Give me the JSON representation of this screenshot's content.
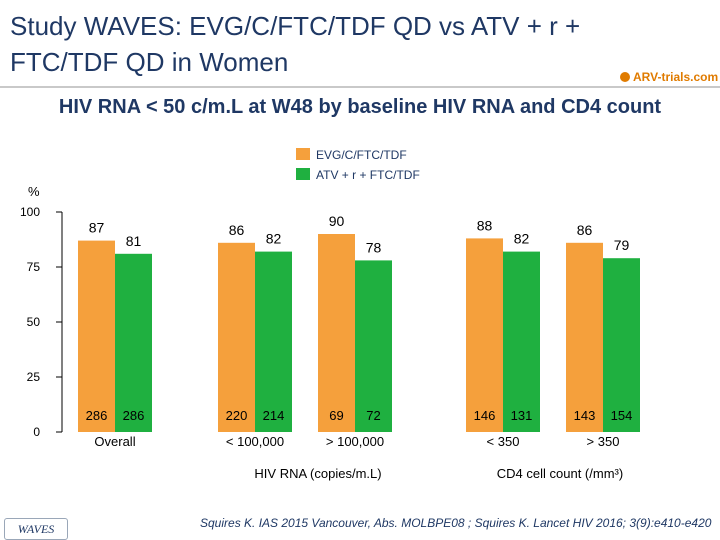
{
  "title": "Study WAVES: EVG/C/FTC/TDF QD vs ATV + r + FTC/TDF QD in Women",
  "logo_text": "ARV-trials.com",
  "subtitle": "HIV RNA < 50 c/m.L at W48 by baseline HIV RNA and CD4 count",
  "citation": "Squires K. IAS 2015 Vancouver, Abs. MOLBPE08 ; Squires K. Lancet HIV 2016; 3(9):e410-e420",
  "footer_badge": "WAVES",
  "colors": {
    "evg": "#f5a03c",
    "atv": "#1fb040",
    "text": "#1f3864"
  },
  "chart_data": {
    "type": "bar",
    "ylabel": "%",
    "ylim": [
      0,
      100
    ],
    "yticks": [
      0,
      25,
      50,
      75,
      100
    ],
    "legend_position": "top-center",
    "series": [
      {
        "name": "EVG/C/FTC/TDF",
        "values": [
          87,
          86,
          90,
          88,
          86
        ],
        "n": [
          "286",
          "220",
          "69",
          "146",
          "143"
        ]
      },
      {
        "name": "ATV + r + FTC/TDF",
        "values": [
          81,
          82,
          78,
          82,
          79
        ],
        "n": [
          "286",
          "214",
          "72",
          "131",
          "154"
        ]
      }
    ],
    "categories": [
      "Overall",
      "< 100,000",
      "> 100,000",
      "< 350",
      "> 350"
    ],
    "group_labels": [
      "HIV RNA (copies/m.L)",
      "CD4 cell count (/mm³)"
    ]
  }
}
